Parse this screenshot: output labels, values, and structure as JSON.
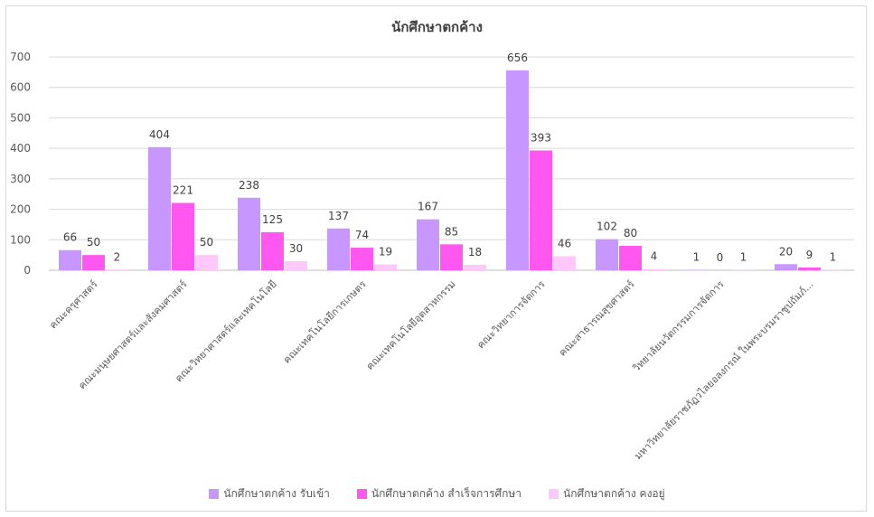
{
  "chart_data": {
    "type": "bar",
    "title": "นักศึกษาตกค้าง",
    "categories": [
      "คณะครุศาสตร์",
      "คณะมนุษยศาสตร์และสังคมศาสตร์",
      "คณะวิทยาศาสตร์และเทคโนโลยี",
      "คณะเทคโนโลยีการเกษตร",
      "คณะเทคโนโลยีอุตสาหกรรม",
      "คณะวิทยาการจัดการ",
      "คณะสาธารณสุขศาสตร์",
      "วิทยาลัยนวัตกรรมการจัดการ",
      "มหาวิทยาลัยราชภัฏวไลยอลงกรณ์ ในพระบรมราชูปถัมภ์..."
    ],
    "series": [
      {
        "name": "นักศึกษาตกค้าง รับเข้า",
        "color": "#c896ff",
        "values": [
          66,
          404,
          238,
          137,
          167,
          656,
          102,
          1,
          20
        ]
      },
      {
        "name": "นักศึกษาตกค้าง สำเร็จการศึกษา",
        "color": "#ff57ef",
        "values": [
          50,
          221,
          125,
          74,
          85,
          393,
          80,
          0,
          9
        ]
      },
      {
        "name": "นักศึกษาตกค้าง คงอยู่",
        "color": "#ffc8fb",
        "values": [
          2,
          50,
          30,
          19,
          18,
          46,
          4,
          1,
          1
        ]
      }
    ],
    "ylim": [
      0,
      700
    ],
    "yticks": [
      0,
      100,
      200,
      300,
      400,
      500,
      600,
      700
    ],
    "grid": true,
    "legend_position": "bottom"
  }
}
